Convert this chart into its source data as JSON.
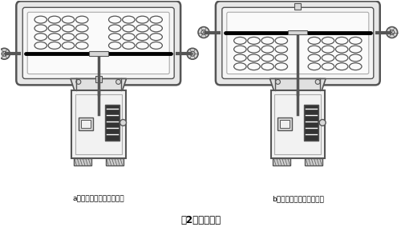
{
  "title": "图2、执行机构",
  "label_a": "a、反作用与阀构成气开式",
  "label_b": "b、正作用与阀构成气关式",
  "line_color": "#555555",
  "light_fill": "#f0f0f0",
  "mid_fill": "#d8d8d8",
  "dark_fill": "#888888",
  "title_fontsize": 8.5,
  "label_fontsize": 6.5
}
